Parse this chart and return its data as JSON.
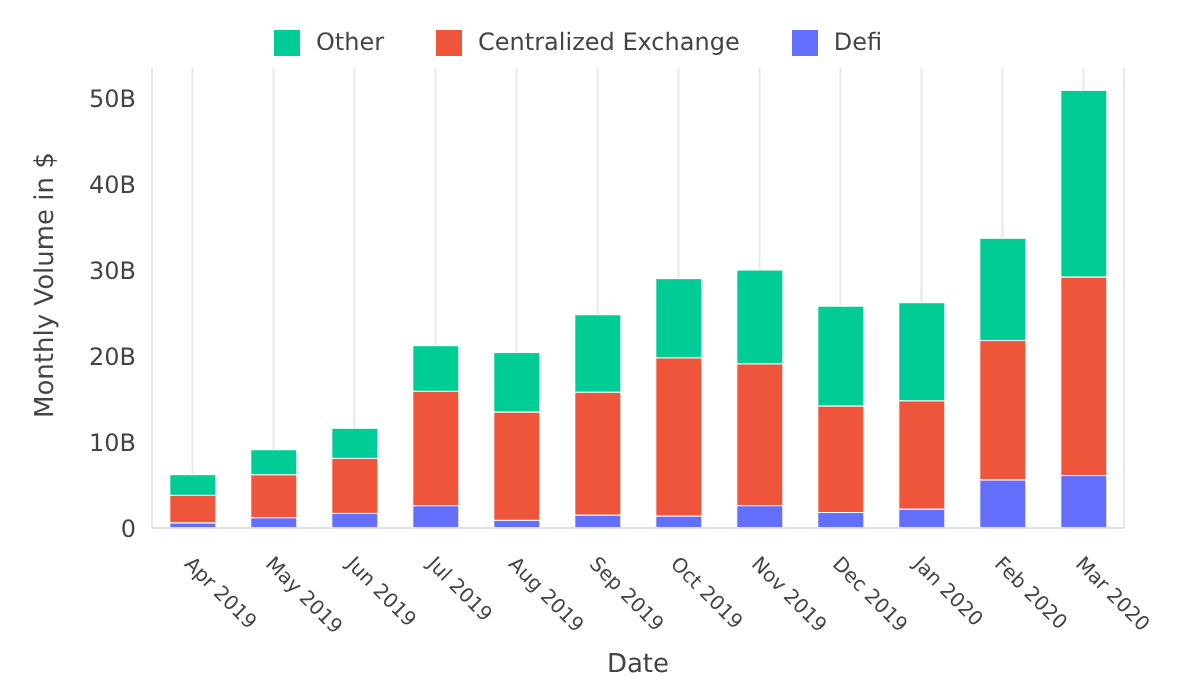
{
  "chart_data": {
    "type": "bar",
    "stacked": true,
    "xlabel": "Date",
    "ylabel": "Monthly Volume in $",
    "categories": [
      "Apr 2019",
      "May 2019",
      "Jun 2019",
      "Jul 2019",
      "Aug 2019",
      "Sep 2019",
      "Oct 2019",
      "Nov 2019",
      "Dec 2019",
      "Jan 2020",
      "Feb 2020",
      "Mar 2020"
    ],
    "series": [
      {
        "name": "Defi",
        "color": "#636efa",
        "values": [
          0.6,
          1.2,
          1.7,
          2.6,
          0.9,
          1.5,
          1.4,
          2.6,
          1.8,
          2.2,
          5.6,
          6.1
        ]
      },
      {
        "name": "Centralized Exchange",
        "color": "#ef553b",
        "values": [
          3.2,
          5.0,
          6.4,
          13.3,
          12.6,
          14.3,
          18.4,
          16.5,
          12.4,
          12.6,
          16.2,
          23.1
        ]
      },
      {
        "name": "Other",
        "color": "#00cc96",
        "values": [
          2.4,
          2.9,
          3.5,
          5.3,
          6.9,
          9.0,
          9.2,
          10.9,
          11.6,
          11.4,
          11.9,
          21.7
        ]
      }
    ],
    "ylim": [
      0,
      53.5
    ],
    "yticks": [
      0,
      {
        "value": 10,
        "label": "10B"
      },
      {
        "value": 20,
        "label": "20B"
      },
      {
        "value": 30,
        "label": "30B"
      },
      {
        "value": 40,
        "label": "40B"
      },
      {
        "value": 50,
        "label": "50B"
      }
    ],
    "grid": "x",
    "legend": "top"
  }
}
